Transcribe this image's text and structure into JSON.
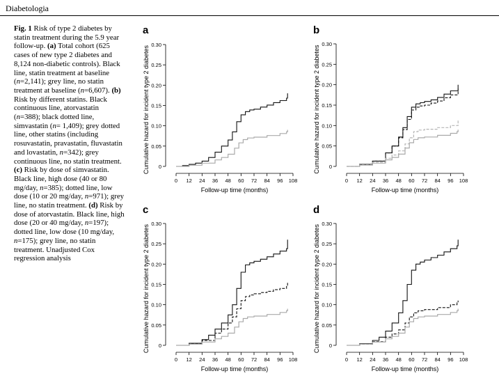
{
  "header": {
    "journal": "Diabetologia"
  },
  "caption": {
    "fig_label": "Fig. 1",
    "text_parts": [
      {
        "t": " Risk of type 2 diabetes by statin treatment during the 5.9 year follow-up. ",
        "b": false
      },
      {
        "t": "(a)",
        "b": true
      },
      {
        "t": " Total cohort (625 cases of new type 2 diabetes and 8,124 non-diabetic controls). Black line, statin treatment at baseline (",
        "b": false
      },
      {
        "t": "n",
        "i": true
      },
      {
        "t": "=2,141); grey line, no statin treatment at baseline (",
        "b": false
      },
      {
        "t": "n",
        "i": true
      },
      {
        "t": "=6,607). ",
        "b": false
      },
      {
        "t": "(b)",
        "b": true
      },
      {
        "t": " Risk by different statins. Black continuous line, atorvastatin (",
        "b": false
      },
      {
        "t": "n",
        "i": true
      },
      {
        "t": "=388); black dotted line, simvastatin (",
        "b": false
      },
      {
        "t": "n",
        "i": true
      },
      {
        "t": "= 1,409); grey dotted line, other statins (including rosuvastatin, pravastatin, fluvastatin and lovastatin, ",
        "b": false
      },
      {
        "t": "n",
        "i": true
      },
      {
        "t": "=342); grey continuous line, no statin treatment. ",
        "b": false
      },
      {
        "t": "(c)",
        "b": true
      },
      {
        "t": " Risk by dose of simvastatin. Black line, high dose (40 or 80 mg/day, ",
        "b": false
      },
      {
        "t": "n",
        "i": true
      },
      {
        "t": "=385); dotted line, low dose (10 or 20 mg/day, ",
        "b": false
      },
      {
        "t": "n",
        "i": true
      },
      {
        "t": "=971); grey line, no statin treatment. ",
        "b": false
      },
      {
        "t": "(d)",
        "b": true
      },
      {
        "t": " Risk by dose of atorvastatin. Black line, high dose (20 or 40 mg/day, ",
        "b": false
      },
      {
        "t": "n",
        "i": true
      },
      {
        "t": "=197); dotted line, low dose (10 mg/day, ",
        "b": false
      },
      {
        "t": "n",
        "i": true
      },
      {
        "t": "=175); grey line, no statin treatment. Unadjusted Cox regression analysis",
        "b": false
      }
    ]
  },
  "colors": {
    "black": "#111111",
    "grey": "#aaaaaa",
    "grey_dash": "#b5b5b5"
  },
  "chart_data": [
    {
      "panel": "a",
      "type": "line",
      "xlabel": "Follow-up time (months)",
      "ylabel": "Cumulative hazard for incident type 2 diabetes",
      "xticks": [
        "0",
        "12",
        "24",
        "36",
        "48",
        "60",
        "72",
        "84",
        "96",
        "108"
      ],
      "yticks": [
        "0",
        "0.05",
        "0.10",
        "0.15",
        "0.20",
        "0.25",
        "0.30"
      ],
      "xlim": [
        0,
        108
      ],
      "ylim": [
        0,
        0.3
      ],
      "series": [
        {
          "style": "black",
          "x": [
            0,
            6,
            12,
            18,
            24,
            30,
            36,
            42,
            48,
            52,
            56,
            60,
            64,
            68,
            72,
            78,
            84,
            90,
            96,
            102,
            103
          ],
          "y": [
            0,
            0.002,
            0.005,
            0.008,
            0.013,
            0.022,
            0.035,
            0.05,
            0.065,
            0.085,
            0.11,
            0.127,
            0.135,
            0.139,
            0.141,
            0.146,
            0.151,
            0.157,
            0.162,
            0.168,
            0.18
          ]
        },
        {
          "style": "grey",
          "x": [
            0,
            12,
            24,
            36,
            42,
            48,
            54,
            58,
            62,
            66,
            72,
            84,
            96,
            102,
            103
          ],
          "y": [
            0,
            0.003,
            0.008,
            0.016,
            0.022,
            0.03,
            0.045,
            0.058,
            0.066,
            0.07,
            0.072,
            0.076,
            0.081,
            0.085,
            0.09
          ]
        }
      ]
    },
    {
      "panel": "b",
      "type": "line",
      "xlabel": "Follow-up time (months)",
      "ylabel": "Cumulative hazard for incident type 2 diabetes",
      "xticks": [
        "0",
        "12",
        "24",
        "36",
        "48",
        "60",
        "72",
        "84",
        "96",
        "108"
      ],
      "yticks": [
        "0",
        "0.05",
        "0.10",
        "0.15",
        "0.20",
        "0.25",
        "0.30"
      ],
      "xlim": [
        0,
        108
      ],
      "ylim": [
        0,
        0.3
      ],
      "series": [
        {
          "style": "black",
          "x": [
            0,
            12,
            24,
            36,
            42,
            48,
            52,
            56,
            60,
            64,
            68,
            72,
            78,
            84,
            90,
            96,
            103
          ],
          "y": [
            0,
            0.005,
            0.013,
            0.033,
            0.05,
            0.072,
            0.095,
            0.122,
            0.145,
            0.153,
            0.156,
            0.159,
            0.163,
            0.169,
            0.177,
            0.185,
            0.2
          ]
        },
        {
          "style": "black-dash",
          "x": [
            0,
            12,
            24,
            36,
            42,
            48,
            52,
            56,
            60,
            64,
            68,
            72,
            78,
            84,
            90,
            96,
            103
          ],
          "y": [
            0,
            0.005,
            0.013,
            0.033,
            0.05,
            0.07,
            0.09,
            0.115,
            0.138,
            0.145,
            0.148,
            0.15,
            0.155,
            0.16,
            0.168,
            0.175,
            0.19
          ]
        },
        {
          "style": "grey-dash",
          "x": [
            0,
            12,
            24,
            36,
            42,
            48,
            54,
            58,
            62,
            66,
            72,
            84,
            96,
            103
          ],
          "y": [
            0,
            0.004,
            0.01,
            0.02,
            0.028,
            0.038,
            0.055,
            0.07,
            0.085,
            0.089,
            0.091,
            0.095,
            0.1,
            0.115
          ]
        },
        {
          "style": "grey",
          "x": [
            0,
            12,
            24,
            36,
            42,
            48,
            54,
            58,
            62,
            66,
            72,
            84,
            96,
            102,
            103
          ],
          "y": [
            0,
            0.003,
            0.008,
            0.016,
            0.022,
            0.03,
            0.045,
            0.058,
            0.066,
            0.07,
            0.072,
            0.076,
            0.081,
            0.085,
            0.09
          ]
        }
      ]
    },
    {
      "panel": "c",
      "type": "line",
      "xlabel": "Follow-up time (months)",
      "ylabel": "Cumulative hazard for incident type 2 diabetes",
      "xticks": [
        "0",
        "12",
        "24",
        "36",
        "48",
        "60",
        "72",
        "84",
        "96",
        "108"
      ],
      "yticks": [
        "0",
        "0.05",
        "0.10",
        "0.15",
        "0.20",
        "0.25",
        "0.30"
      ],
      "xlim": [
        0,
        108
      ],
      "ylim": [
        0,
        0.3
      ],
      "series": [
        {
          "style": "black",
          "x": [
            0,
            12,
            24,
            30,
            36,
            42,
            48,
            52,
            56,
            60,
            64,
            68,
            72,
            78,
            84,
            90,
            96,
            102,
            103
          ],
          "y": [
            0,
            0.005,
            0.014,
            0.025,
            0.04,
            0.055,
            0.075,
            0.1,
            0.14,
            0.18,
            0.198,
            0.203,
            0.207,
            0.212,
            0.218,
            0.225,
            0.232,
            0.238,
            0.26
          ]
        },
        {
          "style": "black-dash",
          "x": [
            0,
            12,
            24,
            36,
            42,
            48,
            52,
            56,
            60,
            64,
            68,
            72,
            78,
            84,
            90,
            96,
            102,
            103
          ],
          "y": [
            0,
            0.004,
            0.012,
            0.03,
            0.04,
            0.055,
            0.07,
            0.09,
            0.11,
            0.12,
            0.124,
            0.127,
            0.13,
            0.133,
            0.137,
            0.14,
            0.145,
            0.155
          ]
        },
        {
          "style": "grey",
          "x": [
            0,
            12,
            24,
            36,
            42,
            48,
            54,
            58,
            62,
            66,
            72,
            84,
            96,
            102,
            103
          ],
          "y": [
            0,
            0.003,
            0.008,
            0.016,
            0.022,
            0.03,
            0.045,
            0.058,
            0.066,
            0.07,
            0.072,
            0.076,
            0.081,
            0.085,
            0.09
          ]
        }
      ]
    },
    {
      "panel": "d",
      "type": "line",
      "xlabel": "Follow-up time (months)",
      "ylabel": "Cumulative hazard for incident type 2 diabetes",
      "xticks": [
        "0",
        "12",
        "24",
        "36",
        "48",
        "60",
        "72",
        "84",
        "96",
        "108"
      ],
      "yticks": [
        "0",
        "0.05",
        "0.10",
        "0.15",
        "0.20",
        "0.25",
        "0.30"
      ],
      "xlim": [
        0,
        108
      ],
      "ylim": [
        0,
        0.3
      ],
      "series": [
        {
          "style": "black",
          "x": [
            0,
            12,
            24,
            30,
            36,
            42,
            48,
            52,
            56,
            60,
            64,
            68,
            72,
            78,
            84,
            90,
            96,
            102,
            103
          ],
          "y": [
            0,
            0.004,
            0.012,
            0.02,
            0.035,
            0.055,
            0.08,
            0.11,
            0.15,
            0.185,
            0.2,
            0.205,
            0.21,
            0.216,
            0.222,
            0.23,
            0.238,
            0.245,
            0.26
          ]
        },
        {
          "style": "black-dash",
          "x": [
            0,
            12,
            24,
            36,
            42,
            48,
            54,
            58,
            62,
            66,
            72,
            84,
            96,
            102,
            103
          ],
          "y": [
            0,
            0.003,
            0.009,
            0.02,
            0.028,
            0.038,
            0.055,
            0.07,
            0.08,
            0.085,
            0.088,
            0.093,
            0.1,
            0.105,
            0.11
          ]
        },
        {
          "style": "grey",
          "x": [
            0,
            12,
            24,
            36,
            42,
            48,
            54,
            58,
            62,
            66,
            72,
            84,
            96,
            102,
            103
          ],
          "y": [
            0,
            0.003,
            0.008,
            0.016,
            0.022,
            0.03,
            0.045,
            0.058,
            0.066,
            0.07,
            0.072,
            0.076,
            0.081,
            0.085,
            0.09
          ]
        }
      ]
    }
  ]
}
